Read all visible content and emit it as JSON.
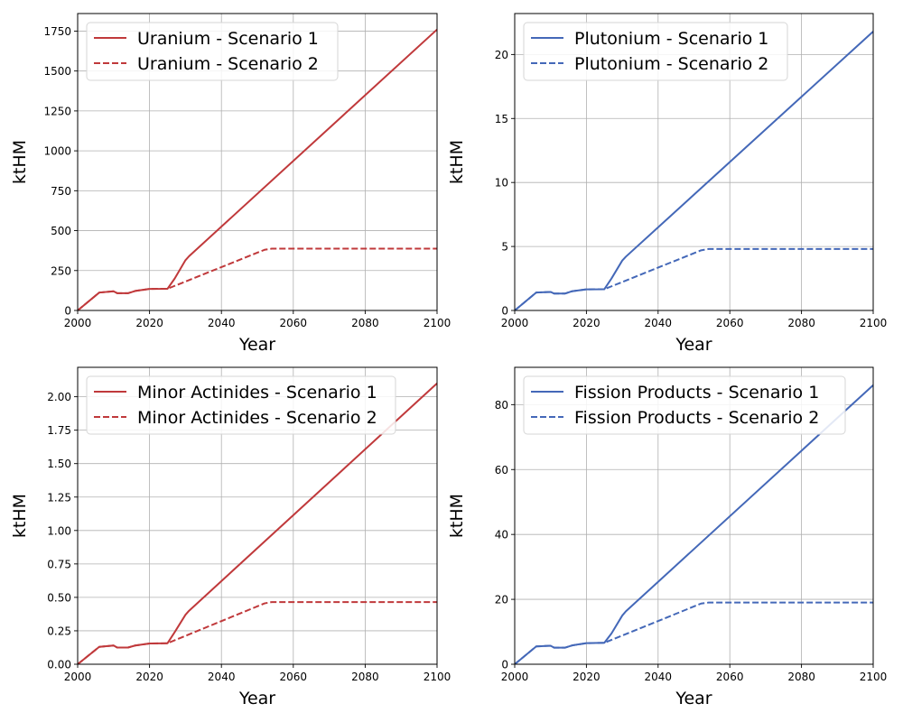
{
  "colors": {
    "red": "#C0393B",
    "blue": "#4468B8",
    "grid": "#b0b0b0"
  },
  "chart_data": [
    {
      "type": "line",
      "xlabel": "Year",
      "ylabel": "ktHM",
      "xlim": [
        2000,
        2100
      ],
      "ylim": [
        0,
        1860
      ],
      "x_ticks": [
        2000,
        2020,
        2040,
        2060,
        2080,
        2100
      ],
      "y_ticks": [
        0,
        250,
        500,
        750,
        1000,
        1250,
        1500,
        1750
      ],
      "y_tick_labels": [
        "0",
        "250",
        "500",
        "750",
        "1000",
        "1250",
        "1500",
        "1750"
      ],
      "grid": true,
      "legend": "upper-left",
      "color": "#C0393B",
      "series": [
        {
          "name": "Uranium - Scenario 1",
          "style": "solid",
          "points": [
            [
              2000,
              0
            ],
            [
              2006,
              112
            ],
            [
              2010,
              120
            ],
            [
              2011,
              108
            ],
            [
              2014,
              108
            ],
            [
              2016,
              122
            ],
            [
              2020,
              135
            ],
            [
              2025,
              136
            ],
            [
              2027,
              200
            ],
            [
              2030,
              315
            ],
            [
              2031,
              340
            ],
            [
              2100,
              1760
            ]
          ]
        },
        {
          "name": "Uranium - Scenario 2",
          "style": "dashed",
          "points": [
            [
              2000,
              0
            ],
            [
              2006,
              112
            ],
            [
              2010,
              120
            ],
            [
              2011,
              108
            ],
            [
              2014,
              108
            ],
            [
              2016,
              122
            ],
            [
              2020,
              135
            ],
            [
              2025,
              136
            ],
            [
              2052,
              380
            ],
            [
              2054,
              387
            ],
            [
              2100,
              387
            ]
          ]
        }
      ]
    },
    {
      "type": "line",
      "xlabel": "Year",
      "ylabel": "ktHM",
      "xlim": [
        2000,
        2100
      ],
      "ylim": [
        0,
        23.2
      ],
      "x_ticks": [
        2000,
        2020,
        2040,
        2060,
        2080,
        2100
      ],
      "y_ticks": [
        0,
        5,
        10,
        15,
        20
      ],
      "y_tick_labels": [
        "0",
        "5",
        "10",
        "15",
        "20"
      ],
      "grid": true,
      "legend": "upper-left",
      "color": "#4468B8",
      "series": [
        {
          "name": "Plutonium - Scenario 1",
          "style": "solid",
          "points": [
            [
              2000,
              0
            ],
            [
              2006,
              1.4
            ],
            [
              2010,
              1.45
            ],
            [
              2011,
              1.32
            ],
            [
              2014,
              1.32
            ],
            [
              2016,
              1.5
            ],
            [
              2020,
              1.65
            ],
            [
              2025,
              1.66
            ],
            [
              2027,
              2.5
            ],
            [
              2030,
              3.9
            ],
            [
              2031,
              4.2
            ],
            [
              2100,
              21.8
            ]
          ]
        },
        {
          "name": "Plutonium - Scenario 2",
          "style": "dashed",
          "points": [
            [
              2000,
              0
            ],
            [
              2006,
              1.4
            ],
            [
              2010,
              1.45
            ],
            [
              2011,
              1.32
            ],
            [
              2014,
              1.32
            ],
            [
              2016,
              1.5
            ],
            [
              2020,
              1.65
            ],
            [
              2025,
              1.66
            ],
            [
              2052,
              4.7
            ],
            [
              2054,
              4.8
            ],
            [
              2100,
              4.8
            ]
          ]
        }
      ]
    },
    {
      "type": "line",
      "xlabel": "Year",
      "ylabel": "ktHM",
      "xlim": [
        2000,
        2100
      ],
      "ylim": [
        0,
        2.22
      ],
      "x_ticks": [
        2000,
        2020,
        2040,
        2060,
        2080,
        2100
      ],
      "y_ticks": [
        0,
        0.25,
        0.5,
        0.75,
        1.0,
        1.25,
        1.5,
        1.75,
        2.0
      ],
      "y_tick_labels": [
        "0.00",
        "0.25",
        "0.50",
        "0.75",
        "1.00",
        "1.25",
        "1.50",
        "1.75",
        "2.00"
      ],
      "grid": true,
      "legend": "upper-left",
      "color": "#C0393B",
      "series": [
        {
          "name": "Minor Actinides - Scenario 1",
          "style": "solid",
          "points": [
            [
              2000,
              0
            ],
            [
              2006,
              0.13
            ],
            [
              2010,
              0.14
            ],
            [
              2011,
              0.125
            ],
            [
              2014,
              0.125
            ],
            [
              2016,
              0.14
            ],
            [
              2020,
              0.155
            ],
            [
              2025,
              0.157
            ],
            [
              2027,
              0.24
            ],
            [
              2030,
              0.37
            ],
            [
              2031,
              0.4
            ],
            [
              2100,
              2.1
            ]
          ]
        },
        {
          "name": "Minor Actinides - Scenario 2",
          "style": "dashed",
          "points": [
            [
              2000,
              0
            ],
            [
              2006,
              0.13
            ],
            [
              2010,
              0.14
            ],
            [
              2011,
              0.125
            ],
            [
              2014,
              0.125
            ],
            [
              2016,
              0.14
            ],
            [
              2020,
              0.155
            ],
            [
              2025,
              0.157
            ],
            [
              2052,
              0.455
            ],
            [
              2054,
              0.465
            ],
            [
              2100,
              0.465
            ]
          ]
        }
      ]
    },
    {
      "type": "line",
      "xlabel": "Year",
      "ylabel": "ktHM",
      "xlim": [
        2000,
        2100
      ],
      "ylim": [
        0,
        91.5
      ],
      "x_ticks": [
        2000,
        2020,
        2040,
        2060,
        2080,
        2100
      ],
      "y_ticks": [
        0,
        20,
        40,
        60,
        80
      ],
      "y_tick_labels": [
        "0",
        "20",
        "40",
        "60",
        "80"
      ],
      "grid": true,
      "legend": "upper-left",
      "color": "#4468B8",
      "series": [
        {
          "name": "Fission Products - Scenario 1",
          "style": "solid",
          "points": [
            [
              2000,
              0
            ],
            [
              2006,
              5.5
            ],
            [
              2010,
              5.7
            ],
            [
              2011,
              5.1
            ],
            [
              2014,
              5.1
            ],
            [
              2016,
              5.8
            ],
            [
              2020,
              6.5
            ],
            [
              2025,
              6.6
            ],
            [
              2027,
              9.5
            ],
            [
              2030,
              15
            ],
            [
              2031,
              16.3
            ],
            [
              2100,
              86
            ]
          ]
        },
        {
          "name": "Fission Products - Scenario 2",
          "style": "dashed",
          "points": [
            [
              2000,
              0
            ],
            [
              2006,
              5.5
            ],
            [
              2010,
              5.7
            ],
            [
              2011,
              5.1
            ],
            [
              2014,
              5.1
            ],
            [
              2016,
              5.8
            ],
            [
              2020,
              6.5
            ],
            [
              2025,
              6.6
            ],
            [
              2052,
              18.7
            ],
            [
              2054,
              19
            ],
            [
              2100,
              19
            ]
          ]
        }
      ]
    }
  ]
}
